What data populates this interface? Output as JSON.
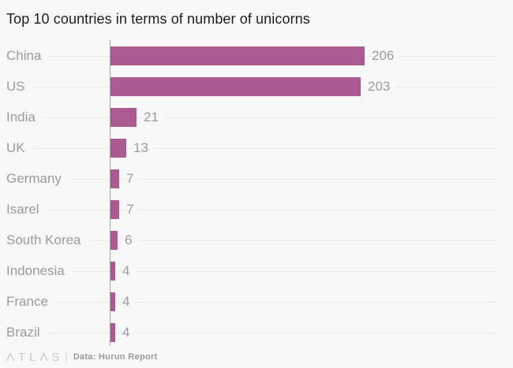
{
  "title": "Top 10 countries in terms of number of unicorns",
  "chart_data": {
    "type": "bar",
    "orientation": "horizontal",
    "title": "Top 10 countries in terms of number of unicorns",
    "categories": [
      "China",
      "US",
      "India",
      "UK",
      "Germany",
      "Isarel",
      "South Korea",
      "Indonesia",
      "France",
      "Brazil"
    ],
    "values": [
      206,
      203,
      21,
      13,
      7,
      7,
      6,
      4,
      4,
      4
    ],
    "xlabel": "",
    "ylabel": "",
    "xlim": [
      0,
      206
    ],
    "grid": true,
    "legend": false,
    "bar_color": "#ab5b8f",
    "label_color": "#9b9b9b",
    "value_label_color": "#9b9b9b"
  },
  "footer": {
    "logo": "ΛTLΛS",
    "divider": "|",
    "source": "Data: Hurun Report"
  }
}
